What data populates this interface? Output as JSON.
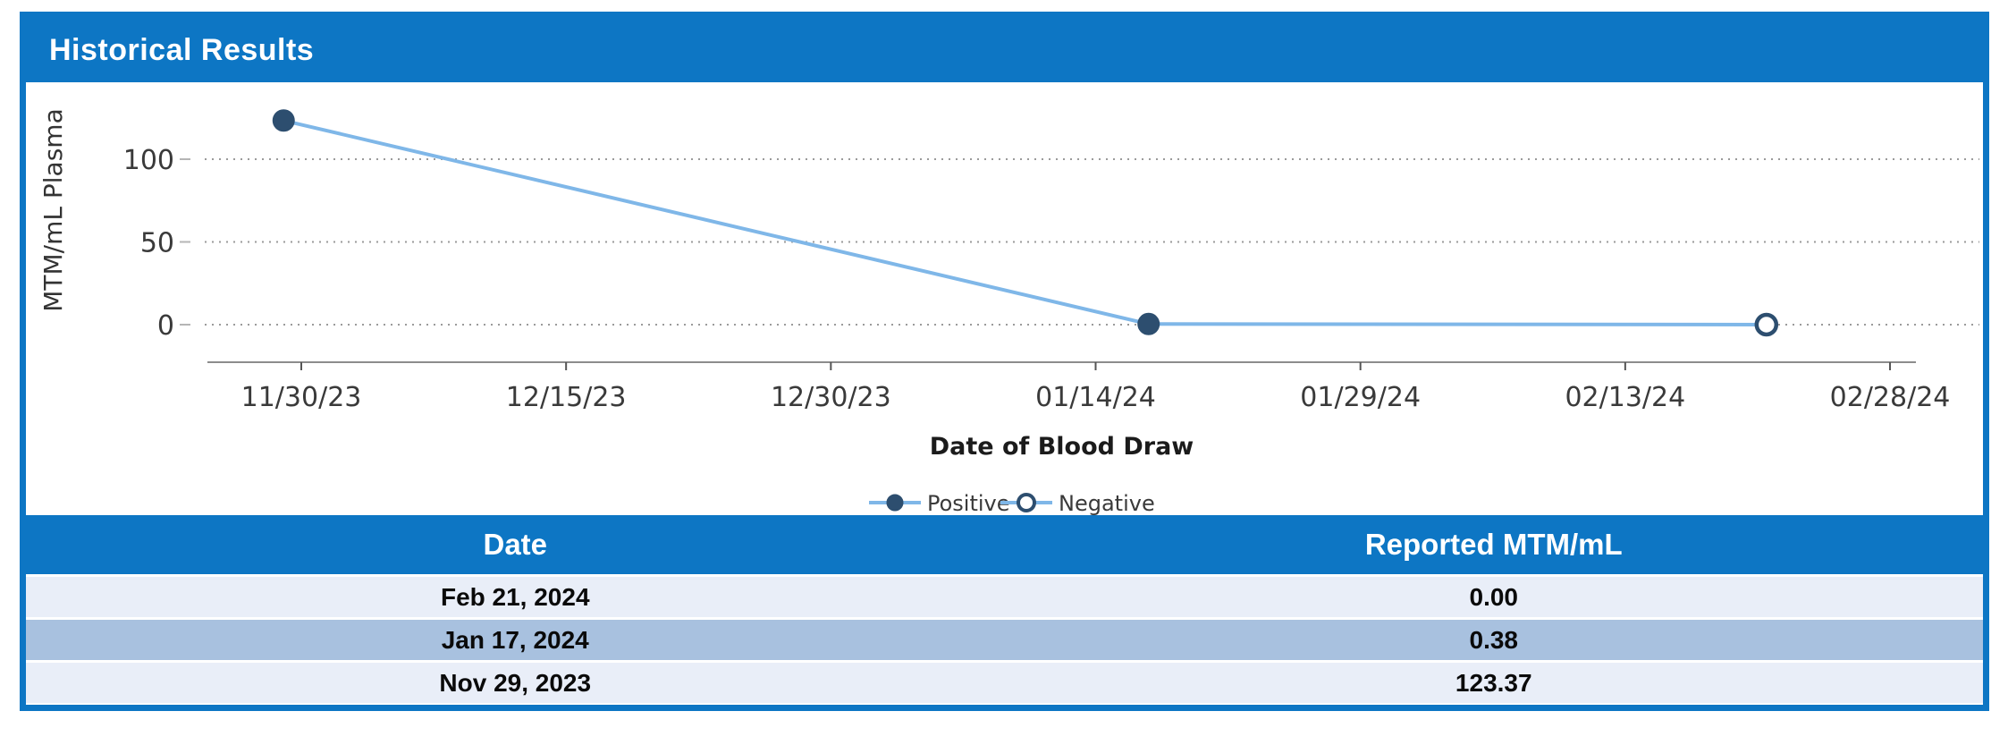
{
  "panel": {
    "title": "Historical Results"
  },
  "colors": {
    "accent_blue": "#0d76c4",
    "row_light": "#e9eef8",
    "row_medium": "#a8c1df",
    "line_blue": "#7fb7e8",
    "marker_navy": "#2d4e6f",
    "grid_gray": "#9a9a9a",
    "axis_gray": "#8c8c8c",
    "tick_text": "#3a3a3a"
  },
  "chart_data": {
    "type": "line",
    "title": "",
    "ylabel": "MTM/mL Plasma",
    "xlabel": "Date of Blood Draw",
    "y_ticks": [
      0,
      50,
      100
    ],
    "ylim": [
      -20,
      140
    ],
    "x_tick_labels": [
      "11/30/23",
      "12/15/23",
      "12/30/23",
      "01/14/24",
      "01/29/24",
      "02/13/24",
      "02/28/24"
    ],
    "x_tick_interval_days": 15,
    "grid": "dotted-horizontal",
    "legend": [
      "Positive",
      "Negative"
    ],
    "legend_position": "bottom-center",
    "points": [
      {
        "date": "11/29/23",
        "value": 123.37,
        "result": "Positive"
      },
      {
        "date": "01/17/24",
        "value": 0.38,
        "result": "Positive"
      },
      {
        "date": "02/21/24",
        "value": 0.0,
        "result": "Negative"
      }
    ]
  },
  "table": {
    "columns": [
      "Date",
      "Reported MTM/mL"
    ],
    "rows": [
      {
        "date": "Feb 21, 2024",
        "value": "0.00"
      },
      {
        "date": "Jan 17, 2024",
        "value": "0.38"
      },
      {
        "date": "Nov 29, 2023",
        "value": "123.37"
      }
    ]
  }
}
